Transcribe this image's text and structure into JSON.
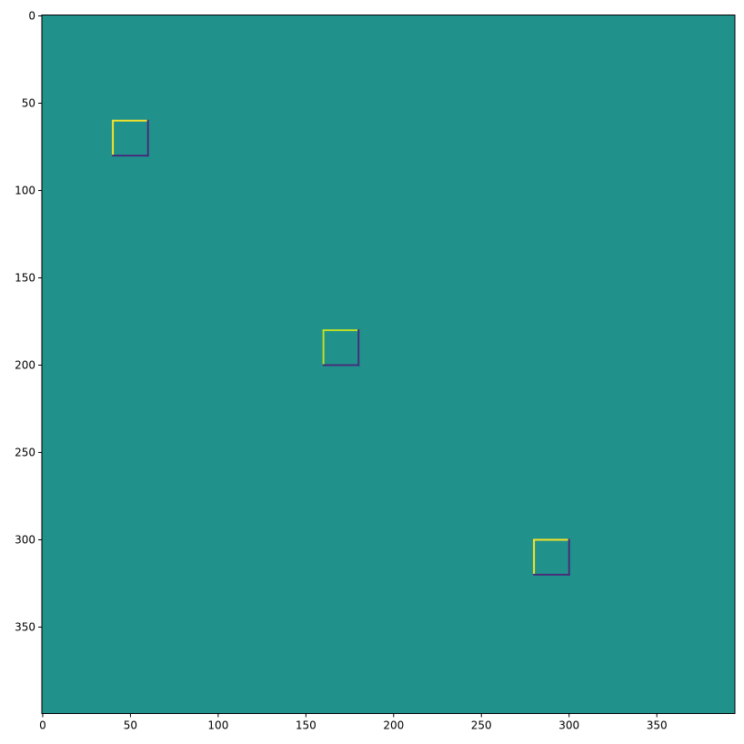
{
  "chart_data": {
    "type": "heatmap",
    "title": "",
    "xlabel": "",
    "ylabel": "",
    "image_rows": 400,
    "image_cols": 395,
    "colormap": "viridis",
    "background_color": "#21918c",
    "xticks": [
      0,
      50,
      100,
      150,
      200,
      250,
      300,
      350
    ],
    "yticks": [
      0,
      50,
      100,
      150,
      200,
      250,
      300,
      350
    ],
    "xlim": [
      -0.5,
      394.5
    ],
    "ylim": [
      399.5,
      -0.5
    ],
    "squares": [
      {
        "x0": 40,
        "y0": 60,
        "x1": 60,
        "y1": 80,
        "top_left_color": "#fde725",
        "bottom_right_color": "#472c7a"
      },
      {
        "x0": 160,
        "y0": 180,
        "x1": 180,
        "y1": 200,
        "top_left_color": "#c2df23",
        "bottom_right_color": "#472c7a"
      },
      {
        "x0": 280,
        "y0": 300,
        "x1": 300,
        "y1": 320,
        "top_left_color": "#fde725",
        "bottom_right_color": "#472c7a"
      }
    ]
  }
}
